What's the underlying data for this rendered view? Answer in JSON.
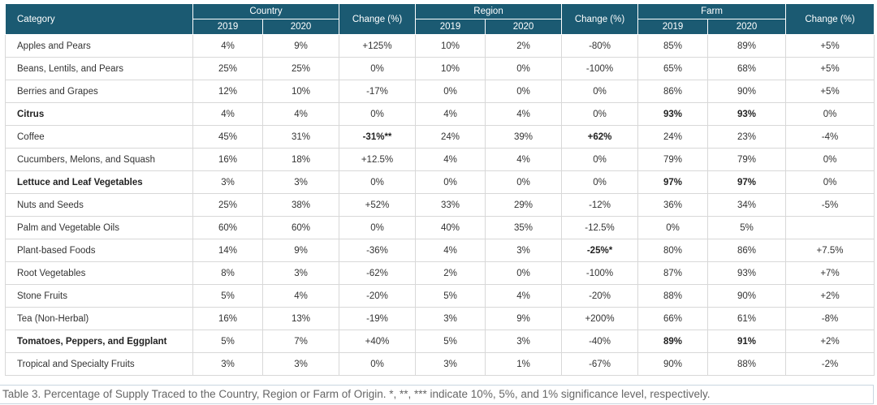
{
  "table": {
    "groups": {
      "category": "Category",
      "country": "Country",
      "region": "Region",
      "farm": "Farm",
      "change": "Change (%)"
    },
    "years": [
      "2019",
      "2020"
    ],
    "rows": [
      {
        "category": "Apples and Pears",
        "bold_category": false,
        "cells": [
          {
            "v": "4%",
            "b": false
          },
          {
            "v": "9%",
            "b": false
          },
          {
            "v": "+125%",
            "b": false
          },
          {
            "v": "10%",
            "b": false
          },
          {
            "v": "2%",
            "b": false
          },
          {
            "v": "-80%",
            "b": false
          },
          {
            "v": "85%",
            "b": false
          },
          {
            "v": "89%",
            "b": false
          },
          {
            "v": "+5%",
            "b": false
          }
        ]
      },
      {
        "category": "Beans, Lentils, and Pears",
        "bold_category": false,
        "cells": [
          {
            "v": "25%",
            "b": false
          },
          {
            "v": "25%",
            "b": false
          },
          {
            "v": "0%",
            "b": false
          },
          {
            "v": "10%",
            "b": false
          },
          {
            "v": "0%",
            "b": false
          },
          {
            "v": "-100%",
            "b": false
          },
          {
            "v": "65%",
            "b": false
          },
          {
            "v": "68%",
            "b": false
          },
          {
            "v": "+5%",
            "b": false
          }
        ]
      },
      {
        "category": "Berries and Grapes",
        "bold_category": false,
        "cells": [
          {
            "v": "12%",
            "b": false
          },
          {
            "v": "10%",
            "b": false
          },
          {
            "v": "-17%",
            "b": false
          },
          {
            "v": "0%",
            "b": false
          },
          {
            "v": "0%",
            "b": false
          },
          {
            "v": "0%",
            "b": false
          },
          {
            "v": "86%",
            "b": false
          },
          {
            "v": "90%",
            "b": false
          },
          {
            "v": "+5%",
            "b": false
          }
        ]
      },
      {
        "category": "Citrus",
        "bold_category": true,
        "cells": [
          {
            "v": "4%",
            "b": false
          },
          {
            "v": "4%",
            "b": false
          },
          {
            "v": "0%",
            "b": false
          },
          {
            "v": "4%",
            "b": false
          },
          {
            "v": "4%",
            "b": false
          },
          {
            "v": "0%",
            "b": false
          },
          {
            "v": "93%",
            "b": true
          },
          {
            "v": "93%",
            "b": true
          },
          {
            "v": "0%",
            "b": false
          }
        ]
      },
      {
        "category": "Coffee",
        "bold_category": false,
        "cells": [
          {
            "v": "45%",
            "b": false
          },
          {
            "v": "31%",
            "b": false
          },
          {
            "v": "-31%**",
            "b": true
          },
          {
            "v": "24%",
            "b": false
          },
          {
            "v": "39%",
            "b": false
          },
          {
            "v": "+62%",
            "b": true
          },
          {
            "v": "24%",
            "b": false
          },
          {
            "v": "23%",
            "b": false
          },
          {
            "v": "-4%",
            "b": false
          }
        ]
      },
      {
        "category": "Cucumbers, Melons, and Squash",
        "bold_category": false,
        "cells": [
          {
            "v": "16%",
            "b": false
          },
          {
            "v": "18%",
            "b": false
          },
          {
            "v": "+12.5%",
            "b": false
          },
          {
            "v": "4%",
            "b": false
          },
          {
            "v": "4%",
            "b": false
          },
          {
            "v": "0%",
            "b": false
          },
          {
            "v": "79%",
            "b": false
          },
          {
            "v": "79%",
            "b": false
          },
          {
            "v": "0%",
            "b": false
          }
        ]
      },
      {
        "category": "Lettuce and Leaf Vegetables",
        "bold_category": true,
        "cells": [
          {
            "v": "3%",
            "b": false
          },
          {
            "v": "3%",
            "b": false
          },
          {
            "v": "0%",
            "b": false
          },
          {
            "v": "0%",
            "b": false
          },
          {
            "v": "0%",
            "b": false
          },
          {
            "v": "0%",
            "b": false
          },
          {
            "v": "97%",
            "b": true
          },
          {
            "v": "97%",
            "b": true
          },
          {
            "v": "0%",
            "b": false
          }
        ]
      },
      {
        "category": "Nuts and Seeds",
        "bold_category": false,
        "cells": [
          {
            "v": "25%",
            "b": false
          },
          {
            "v": "38%",
            "b": false
          },
          {
            "v": "+52%",
            "b": false
          },
          {
            "v": "33%",
            "b": false
          },
          {
            "v": "29%",
            "b": false
          },
          {
            "v": "-12%",
            "b": false
          },
          {
            "v": "36%",
            "b": false
          },
          {
            "v": "34%",
            "b": false
          },
          {
            "v": "-5%",
            "b": false
          }
        ]
      },
      {
        "category": "Palm and Vegetable Oils",
        "bold_category": false,
        "cells": [
          {
            "v": "60%",
            "b": false
          },
          {
            "v": "60%",
            "b": false
          },
          {
            "v": "0%",
            "b": false
          },
          {
            "v": "40%",
            "b": false
          },
          {
            "v": "35%",
            "b": false
          },
          {
            "v": "-12.5%",
            "b": false
          },
          {
            "v": "0%",
            "b": false
          },
          {
            "v": "5%",
            "b": false
          },
          {
            "v": "",
            "b": false
          }
        ]
      },
      {
        "category": "Plant-based Foods",
        "bold_category": false,
        "cells": [
          {
            "v": "14%",
            "b": false
          },
          {
            "v": "9%",
            "b": false
          },
          {
            "v": "-36%",
            "b": false
          },
          {
            "v": "4%",
            "b": false
          },
          {
            "v": "3%",
            "b": false
          },
          {
            "v": "-25%*",
            "b": true
          },
          {
            "v": "80%",
            "b": false
          },
          {
            "v": "86%",
            "b": false
          },
          {
            "v": "+7.5%",
            "b": false
          }
        ]
      },
      {
        "category": "Root Vegetables",
        "bold_category": false,
        "cells": [
          {
            "v": "8%",
            "b": false
          },
          {
            "v": "3%",
            "b": false
          },
          {
            "v": "-62%",
            "b": false
          },
          {
            "v": "2%",
            "b": false
          },
          {
            "v": "0%",
            "b": false
          },
          {
            "v": "-100%",
            "b": false
          },
          {
            "v": "87%",
            "b": false
          },
          {
            "v": "93%",
            "b": false
          },
          {
            "v": "+7%",
            "b": false
          }
        ]
      },
      {
        "category": "Stone Fruits",
        "bold_category": false,
        "cells": [
          {
            "v": "5%",
            "b": false
          },
          {
            "v": "4%",
            "b": false
          },
          {
            "v": "-20%",
            "b": false
          },
          {
            "v": "5%",
            "b": false
          },
          {
            "v": "4%",
            "b": false
          },
          {
            "v": "-20%",
            "b": false
          },
          {
            "v": "88%",
            "b": false
          },
          {
            "v": "90%",
            "b": false
          },
          {
            "v": "+2%",
            "b": false
          }
        ]
      },
      {
        "category": "Tea (Non-Herbal)",
        "bold_category": false,
        "cells": [
          {
            "v": "16%",
            "b": false
          },
          {
            "v": "13%",
            "b": false
          },
          {
            "v": "-19%",
            "b": false
          },
          {
            "v": "3%",
            "b": false
          },
          {
            "v": "9%",
            "b": false
          },
          {
            "v": "+200%",
            "b": false
          },
          {
            "v": "66%",
            "b": false
          },
          {
            "v": "61%",
            "b": false
          },
          {
            "v": "-8%",
            "b": false
          }
        ]
      },
      {
        "category": "Tomatoes, Peppers, and Eggplant",
        "bold_category": true,
        "cells": [
          {
            "v": "5%",
            "b": false
          },
          {
            "v": "7%",
            "b": false
          },
          {
            "v": "+40%",
            "b": false
          },
          {
            "v": "5%",
            "b": false
          },
          {
            "v": "3%",
            "b": false
          },
          {
            "v": "-40%",
            "b": false
          },
          {
            "v": "89%",
            "b": true
          },
          {
            "v": "91%",
            "b": true
          },
          {
            "v": "+2%",
            "b": false
          }
        ]
      },
      {
        "category": "Tropical and Specialty Fruits",
        "bold_category": false,
        "cells": [
          {
            "v": "3%",
            "b": false
          },
          {
            "v": "3%",
            "b": false
          },
          {
            "v": "0%",
            "b": false
          },
          {
            "v": "3%",
            "b": false
          },
          {
            "v": "1%",
            "b": false
          },
          {
            "v": "-67%",
            "b": false
          },
          {
            "v": "90%",
            "b": false
          },
          {
            "v": "88%",
            "b": false
          },
          {
            "v": "-2%",
            "b": false
          }
        ]
      }
    ]
  },
  "caption": "Table 3. Percentage of Supply Traced to the Country, Region or Farm of Origin.  *, **, *** indicate 10%, 5%, and 1% significance level, respectively.",
  "colors": {
    "header_bg": "#1b5a72",
    "header_text": "#ffffff",
    "grid": "#d8d8d8"
  }
}
